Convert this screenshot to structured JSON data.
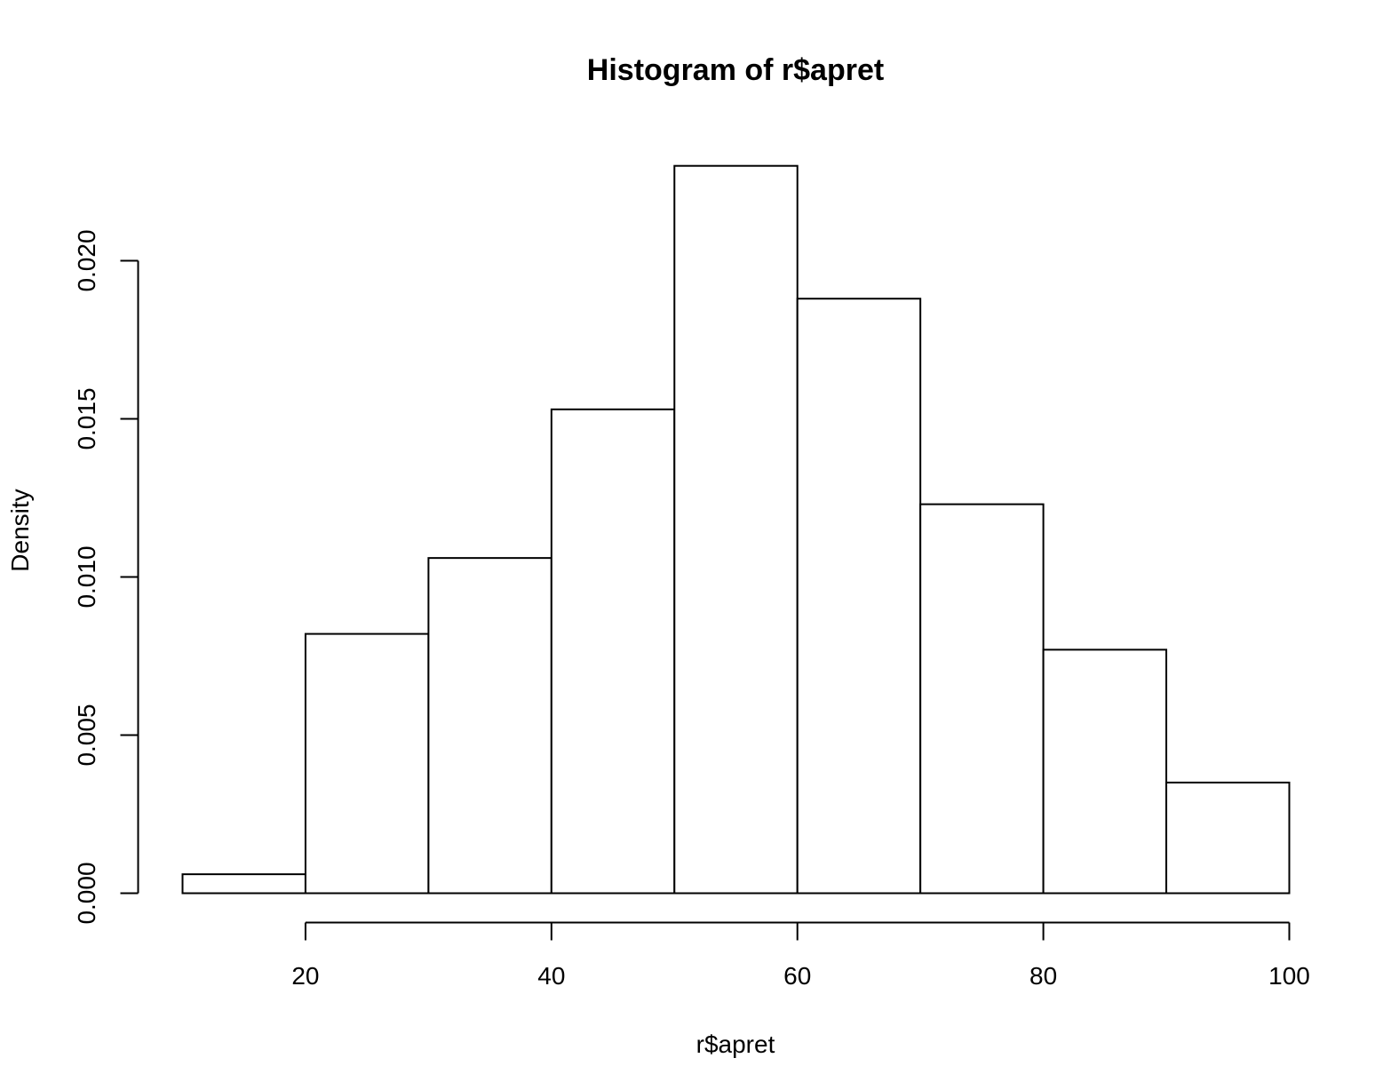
{
  "chart_data": {
    "type": "bar",
    "title": "Histogram of r$apret",
    "xlabel": "r$apret",
    "ylabel": "Density",
    "bins": [
      {
        "start": 10,
        "end": 20,
        "density": 0.0006
      },
      {
        "start": 20,
        "end": 30,
        "density": 0.0082
      },
      {
        "start": 30,
        "end": 40,
        "density": 0.0106
      },
      {
        "start": 40,
        "end": 50,
        "density": 0.0153
      },
      {
        "start": 50,
        "end": 60,
        "density": 0.023
      },
      {
        "start": 60,
        "end": 70,
        "density": 0.0188
      },
      {
        "start": 70,
        "end": 80,
        "density": 0.0123
      },
      {
        "start": 80,
        "end": 90,
        "density": 0.0077
      },
      {
        "start": 90,
        "end": 100,
        "density": 0.0035
      }
    ],
    "x_ticks": [
      "20",
      "40",
      "60",
      "80",
      "100"
    ],
    "x_tick_values": [
      20,
      40,
      60,
      80,
      100
    ],
    "y_ticks": [
      "0.000",
      "0.005",
      "0.010",
      "0.015",
      "0.020"
    ],
    "y_tick_values": [
      0.0,
      0.005,
      0.01,
      0.015,
      0.02
    ],
    "xlim": [
      10,
      100
    ],
    "ylim": [
      0,
      0.023
    ],
    "grid": false,
    "legend": "none",
    "bar_fill": "#ffffff",
    "stroke_color": "#000000"
  }
}
